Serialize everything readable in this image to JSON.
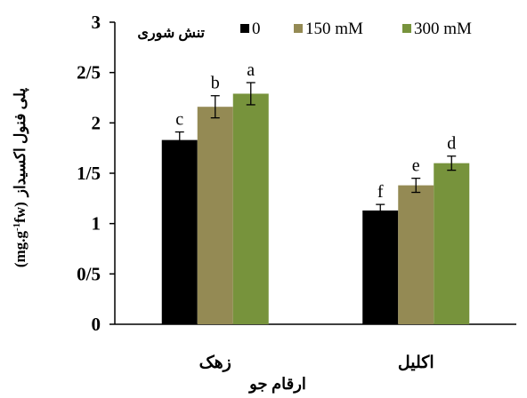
{
  "chart_data": {
    "type": "bar",
    "title": "",
    "xlabel": "ارقام جو",
    "ylabel": "پلی فنول اکسیداز (mg.g-1fw)",
    "ylabel_parts": {
      "text": "پلی فنول اکسیداز",
      "unit_prefix": "(mg.g",
      "unit_sup": "-1",
      "unit_suffix": "fw)"
    },
    "ylim": [
      0,
      3
    ],
    "yticks": [
      0,
      0.5,
      1,
      1.5,
      2,
      2.5,
      3
    ],
    "ytick_labels": [
      "0",
      "0/5",
      "1",
      "1/5",
      "2",
      "2/5",
      "3"
    ],
    "grid": false,
    "legend_title": "تنش شوری",
    "legend_position": "top",
    "categories": [
      "زهک",
      "اکلیل"
    ],
    "series": [
      {
        "name": "0",
        "color": "#000000",
        "values": [
          1.83,
          1.13
        ],
        "errors": [
          0.08,
          0.06
        ],
        "letters": [
          "c",
          "f"
        ]
      },
      {
        "name": "150 mM",
        "color": "#948a54",
        "values": [
          2.16,
          1.38
        ],
        "errors": [
          0.11,
          0.07
        ],
        "letters": [
          "b",
          "e"
        ]
      },
      {
        "name": "300 mM",
        "color": "#77933c",
        "values": [
          2.29,
          1.6
        ],
        "errors": [
          0.11,
          0.07
        ],
        "letters": [
          "a",
          "d"
        ]
      }
    ]
  }
}
